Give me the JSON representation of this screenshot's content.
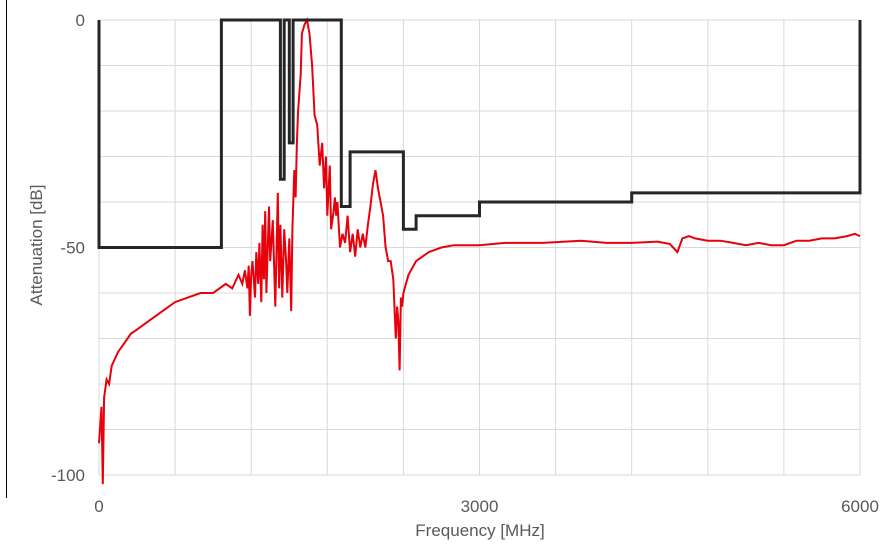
{
  "chart_data": {
    "type": "line",
    "xlabel": "Frequency [MHz]",
    "ylabel": "Attenuation [dB]",
    "xlim": [
      0,
      6000
    ],
    "ylim": [
      -100,
      0
    ],
    "x_ticks": [
      0,
      3000,
      6000
    ],
    "x_tick_labels": [
      "0",
      "3000",
      "6000"
    ],
    "y_ticks": [
      0,
      -50,
      -100
    ],
    "y_tick_labels": [
      "0",
      "-50",
      "-100"
    ],
    "x_gridlines": [
      0,
      600,
      1200,
      1800,
      2400,
      3000,
      3600,
      4200,
      4800,
      5400,
      6000
    ],
    "y_gridlines": [
      0,
      -10,
      -20,
      -30,
      -40,
      -50,
      -60,
      -70,
      -80,
      -90,
      -100
    ],
    "grid": true,
    "legend": "none",
    "series": [
      {
        "color": "#e8000b",
        "points": [
          [
            0,
            -93
          ],
          [
            20,
            -85
          ],
          [
            30,
            -102
          ],
          [
            40,
            -83
          ],
          [
            60,
            -79
          ],
          [
            80,
            -80
          ],
          [
            100,
            -76
          ],
          [
            150,
            -73
          ],
          [
            200,
            -71
          ],
          [
            250,
            -69
          ],
          [
            300,
            -68
          ],
          [
            400,
            -66
          ],
          [
            500,
            -64
          ],
          [
            600,
            -62
          ],
          [
            700,
            -61
          ],
          [
            800,
            -60
          ],
          [
            900,
            -60
          ],
          [
            1000,
            -58
          ],
          [
            1050,
            -59
          ],
          [
            1100,
            -56
          ],
          [
            1130,
            -58
          ],
          [
            1150,
            -55
          ],
          [
            1170,
            -59
          ],
          [
            1180,
            -54
          ],
          [
            1190,
            -65
          ],
          [
            1200,
            -56
          ],
          [
            1210,
            -53
          ],
          [
            1230,
            -61
          ],
          [
            1240,
            -51
          ],
          [
            1255,
            -58
          ],
          [
            1265,
            -49
          ],
          [
            1280,
            -62
          ],
          [
            1290,
            -45
          ],
          [
            1300,
            -57
          ],
          [
            1310,
            -42
          ],
          [
            1320,
            -60
          ],
          [
            1340,
            -41
          ],
          [
            1350,
            -53
          ],
          [
            1370,
            -44
          ],
          [
            1390,
            -63
          ],
          [
            1400,
            -50
          ],
          [
            1410,
            -38
          ],
          [
            1420,
            -59
          ],
          [
            1430,
            -45
          ],
          [
            1445,
            -61
          ],
          [
            1460,
            -46
          ],
          [
            1475,
            -53
          ],
          [
            1485,
            -60
          ],
          [
            1500,
            -48
          ],
          [
            1515,
            -64
          ],
          [
            1525,
            -46
          ],
          [
            1540,
            -33
          ],
          [
            1550,
            -39
          ],
          [
            1560,
            -27
          ],
          [
            1570,
            -20
          ],
          [
            1590,
            -12
          ],
          [
            1600,
            -3
          ],
          [
            1620,
            -1
          ],
          [
            1640,
            0
          ],
          [
            1660,
            -3
          ],
          [
            1680,
            -10
          ],
          [
            1700,
            -21
          ],
          [
            1720,
            -23
          ],
          [
            1740,
            -32
          ],
          [
            1760,
            -27
          ],
          [
            1775,
            -37
          ],
          [
            1790,
            -30
          ],
          [
            1800,
            -43
          ],
          [
            1820,
            -32
          ],
          [
            1830,
            -46
          ],
          [
            1850,
            -42
          ],
          [
            1860,
            -39
          ],
          [
            1870,
            -43
          ],
          [
            1880,
            -40
          ],
          [
            1900,
            -50
          ],
          [
            1920,
            -47
          ],
          [
            1940,
            -49
          ],
          [
            1960,
            -43
          ],
          [
            1980,
            -51
          ],
          [
            2000,
            -47
          ],
          [
            2020,
            -52
          ],
          [
            2040,
            -46
          ],
          [
            2060,
            -50
          ],
          [
            2080,
            -47
          ],
          [
            2100,
            -50
          ],
          [
            2120,
            -45
          ],
          [
            2140,
            -41
          ],
          [
            2160,
            -36
          ],
          [
            2180,
            -33
          ],
          [
            2200,
            -37
          ],
          [
            2220,
            -40
          ],
          [
            2240,
            -43
          ],
          [
            2260,
            -50
          ],
          [
            2280,
            -53
          ],
          [
            2300,
            -53
          ],
          [
            2320,
            -57
          ],
          [
            2340,
            -70
          ],
          [
            2350,
            -63
          ],
          [
            2360,
            -66
          ],
          [
            2370,
            -77
          ],
          [
            2380,
            -61
          ],
          [
            2390,
            -63
          ],
          [
            2400,
            -60
          ],
          [
            2420,
            -58
          ],
          [
            2440,
            -56
          ],
          [
            2460,
            -55
          ],
          [
            2480,
            -54
          ],
          [
            2500,
            -53
          ],
          [
            2550,
            -52
          ],
          [
            2600,
            -51
          ],
          [
            2700,
            -50
          ],
          [
            2800,
            -49.5
          ],
          [
            3000,
            -49.5
          ],
          [
            3200,
            -49
          ],
          [
            3500,
            -49
          ],
          [
            3800,
            -48.5
          ],
          [
            4000,
            -49
          ],
          [
            4200,
            -49
          ],
          [
            4400,
            -48.7
          ],
          [
            4500,
            -49.2
          ],
          [
            4560,
            -51
          ],
          [
            4600,
            -48
          ],
          [
            4650,
            -47.5
          ],
          [
            4700,
            -48
          ],
          [
            4800,
            -48.5
          ],
          [
            4900,
            -48.5
          ],
          [
            5000,
            -49
          ],
          [
            5100,
            -49.5
          ],
          [
            5200,
            -49
          ],
          [
            5300,
            -49.5
          ],
          [
            5400,
            -49.5
          ],
          [
            5500,
            -48.5
          ],
          [
            5600,
            -48.5
          ],
          [
            5700,
            -48
          ],
          [
            5800,
            -48
          ],
          [
            5900,
            -47.5
          ],
          [
            5960,
            -47
          ],
          [
            6000,
            -47.5
          ]
        ]
      },
      {
        "color": "#262626",
        "points": [
          [
            0,
            0
          ],
          [
            0,
            -50
          ],
          [
            965,
            -50
          ],
          [
            965,
            0
          ],
          [
            1430,
            0
          ],
          [
            1430,
            -35
          ],
          [
            1460,
            -35
          ],
          [
            1460,
            0
          ],
          [
            1500,
            0
          ],
          [
            1500,
            -27
          ],
          [
            1530,
            -27
          ],
          [
            1530,
            0
          ],
          [
            1910,
            0
          ],
          [
            1910,
            -41
          ],
          [
            1980,
            -41
          ],
          [
            1980,
            -29
          ],
          [
            2400,
            -29
          ],
          [
            2400,
            -46
          ],
          [
            2500,
            -46
          ],
          [
            2500,
            -43
          ],
          [
            3000,
            -43
          ],
          [
            3000,
            -40
          ],
          [
            4200,
            -40
          ],
          [
            4200,
            -38
          ],
          [
            6000,
            -38
          ],
          [
            6000,
            0
          ]
        ]
      }
    ]
  }
}
